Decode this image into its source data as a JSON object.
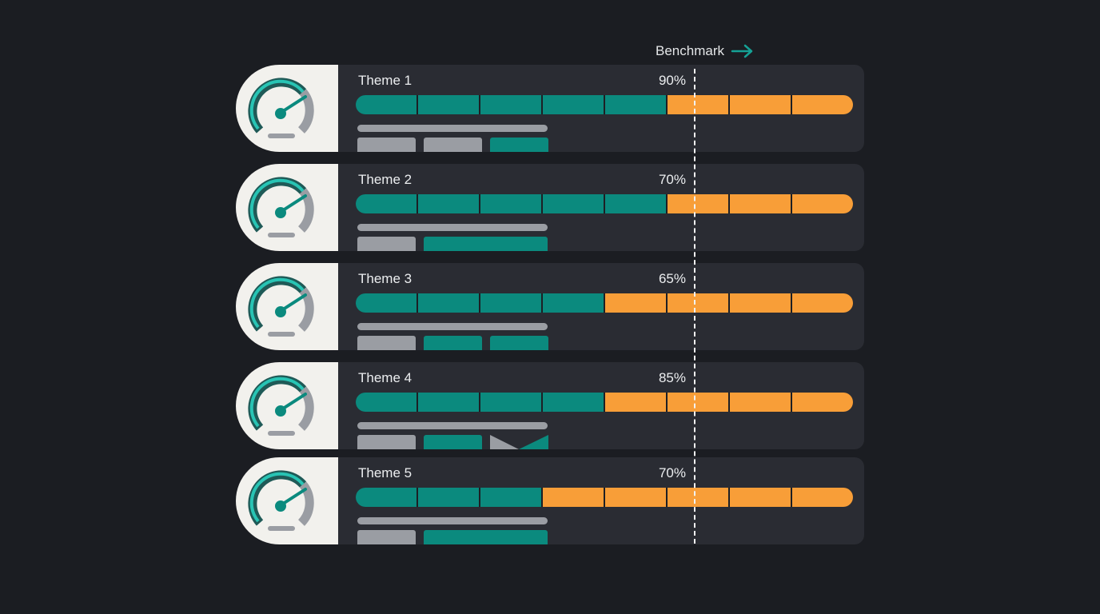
{
  "benchmark": {
    "label": "Benchmark",
    "arrow_icon": "arrow-right-icon",
    "position_pct": 68.5
  },
  "colors": {
    "background": "#1b1d22",
    "panel": "#2a2c33",
    "teal": "#0b8a7e",
    "orange": "#f89e38",
    "gray": "#9a9da3",
    "gauge_bg": "#f2f1ed"
  },
  "rows": [
    {
      "label": "Theme 1",
      "pct": "90%",
      "teal_segments": 5,
      "total_segments": 8,
      "blocks": [
        "gray",
        "gray",
        "teal"
      ]
    },
    {
      "label": "Theme 2",
      "pct": "70%",
      "teal_segments": 5,
      "total_segments": 8,
      "blocks": [
        "gray",
        "teal-wide"
      ]
    },
    {
      "label": "Theme 3",
      "pct": "65%",
      "teal_segments": 4,
      "total_segments": 8,
      "blocks": [
        "gray",
        "teal",
        "teal"
      ]
    },
    {
      "label": "Theme 4",
      "pct": "85%",
      "teal_segments": 4,
      "total_segments": 8,
      "blocks": [
        "gray",
        "teal",
        "triangles"
      ]
    },
    {
      "label": "Theme 5",
      "pct": "70%",
      "teal_segments": 3,
      "total_segments": 8,
      "blocks": [
        "gray",
        "teal-wide"
      ]
    }
  ],
  "chart_data": {
    "type": "bar",
    "title": "",
    "categories": [
      "Theme 1",
      "Theme 2",
      "Theme 3",
      "Theme 4",
      "Theme 5"
    ],
    "values": [
      90,
      70,
      65,
      85,
      70
    ],
    "value_labels": [
      "90%",
      "70%",
      "65%",
      "85%",
      "70%"
    ],
    "segments_filled": [
      5,
      5,
      4,
      4,
      3
    ],
    "segments_total": 8,
    "orientation": "horizontal",
    "annotations": [
      {
        "text": "Benchmark",
        "type": "dashed-vertical-line",
        "approx_segment_position": 5.5
      }
    ],
    "series": [
      {
        "name": "filled (teal)",
        "color": "#0b8a7e",
        "values": [
          5,
          5,
          4,
          4,
          3
        ]
      },
      {
        "name": "remaining (orange)",
        "color": "#f89e38",
        "values": [
          3,
          3,
          4,
          4,
          5
        ]
      }
    ],
    "xlabel": "",
    "ylabel": "",
    "grid": false,
    "legend": "none"
  }
}
